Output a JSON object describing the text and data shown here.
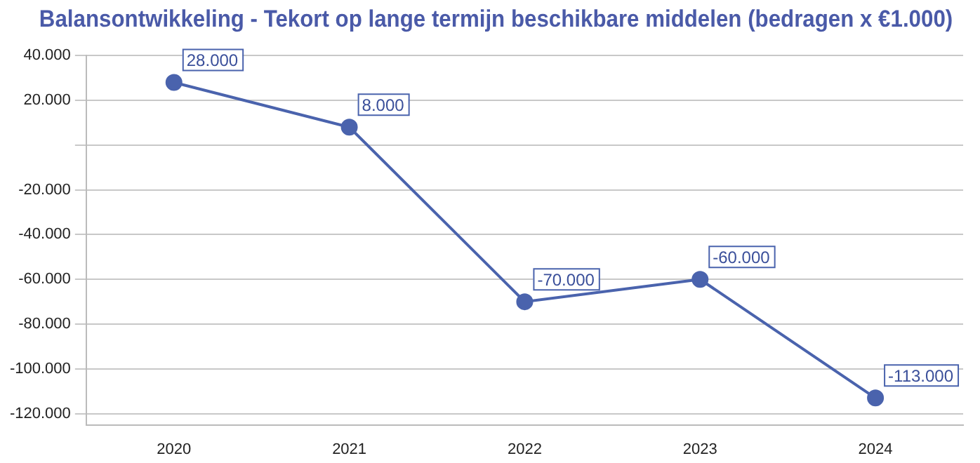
{
  "chart_data": {
    "type": "line",
    "title": "Balansontwikkeling - Tekort op lange termijn beschikbare middelen (bedragen x €1.000)",
    "categories": [
      "2020",
      "2021",
      "2022",
      "2023",
      "2024"
    ],
    "series": [
      {
        "color": "#4a63ad",
        "values": [
          28000,
          8000,
          -70000,
          -60000,
          -113000
        ],
        "value_labels": [
          "28.000",
          "8.000",
          "-70.000",
          "-60.000",
          "-113.000"
        ]
      }
    ],
    "ylim": [
      -125000,
      40000
    ],
    "yticks": [
      {
        "value": -120000,
        "label": "-120.000"
      },
      {
        "value": -100000,
        "label": "-100.000"
      },
      {
        "value": -80000,
        "label": "-80.000"
      },
      {
        "value": -60000,
        "label": "-60.000"
      },
      {
        "value": -40000,
        "label": "-40.000"
      },
      {
        "value": -20000,
        "label": "-20.000"
      },
      {
        "value": 0,
        "label": null
      },
      {
        "value": 20000,
        "label": "20.000"
      },
      {
        "value": 40000,
        "label": "40.000"
      }
    ],
    "grid": "y",
    "marker": "circle",
    "line_style": "solid",
    "legend": false
  }
}
